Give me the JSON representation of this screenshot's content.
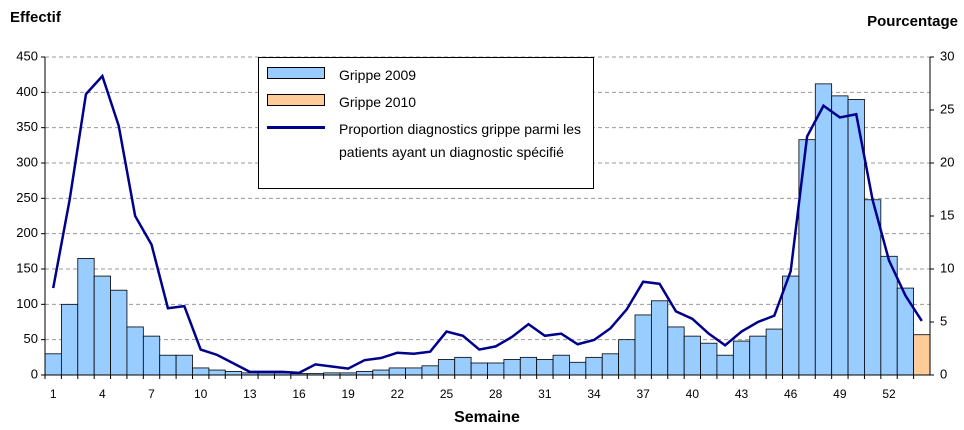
{
  "chart_data": {
    "type": "bar",
    "y_title": "Effectif",
    "y2_title": "Pourcentage",
    "x_title": "Semaine",
    "categories": [
      "1",
      null,
      null,
      "4",
      null,
      null,
      "7",
      null,
      null,
      "10",
      null,
      null,
      "13",
      null,
      null,
      "16",
      null,
      null,
      "19",
      null,
      null,
      "22",
      null,
      null,
      "25",
      null,
      null,
      "28",
      null,
      null,
      "31",
      null,
      null,
      "34",
      null,
      null,
      "37",
      null,
      null,
      "40",
      null,
      null,
      "43",
      null,
      null,
      "46",
      null,
      null,
      "49",
      null,
      null,
      "52",
      null,
      null
    ],
    "series": [
      {
        "name": "Grippe 2009",
        "type": "bar",
        "color": "#99ccff",
        "values": [
          30,
          100,
          165,
          140,
          120,
          68,
          55,
          28,
          28,
          10,
          7,
          5,
          3,
          3,
          3,
          2,
          2,
          3,
          3,
          5,
          7,
          10,
          10,
          13,
          22,
          25,
          17,
          17,
          22,
          25,
          22,
          28,
          18,
          25,
          30,
          50,
          85,
          105,
          68,
          55,
          45,
          28,
          48,
          55,
          65,
          140,
          333,
          412,
          395,
          390,
          248,
          168,
          123,
          null
        ]
      },
      {
        "name": "Grippe 2010",
        "type": "bar",
        "color": "#ffcc99",
        "values": [
          null,
          null,
          null,
          null,
          null,
          null,
          null,
          null,
          null,
          null,
          null,
          null,
          null,
          null,
          null,
          null,
          null,
          null,
          null,
          null,
          null,
          null,
          null,
          null,
          null,
          null,
          null,
          null,
          null,
          null,
          null,
          null,
          null,
          null,
          null,
          null,
          null,
          null,
          null,
          null,
          null,
          null,
          null,
          null,
          null,
          null,
          null,
          null,
          null,
          null,
          null,
          null,
          null,
          57
        ]
      },
      {
        "name": "Proportion diagnostics grippe parmi les patients ayant un diagnostic spécifié",
        "type": "line",
        "axis": "y2",
        "color": "#00008b",
        "values": [
          8.2,
          16.5,
          26.5,
          28.2,
          23.5,
          15,
          12.3,
          6.3,
          6.5,
          2.4,
          1.9,
          1.1,
          0.3,
          0.3,
          0.3,
          0.2,
          1.0,
          0.8,
          0.6,
          1.4,
          1.6,
          2.1,
          2.0,
          2.2,
          4.1,
          3.7,
          2.4,
          2.7,
          3.6,
          4.8,
          3.7,
          3.9,
          2.9,
          3.3,
          4.4,
          6.2,
          8.8,
          8.6,
          6.0,
          5.3,
          3.9,
          2.8,
          4.1,
          5.0,
          5.6,
          9.8,
          22.5,
          25.4,
          24.3,
          24.6,
          16.5,
          10.8,
          7.5,
          5.1
        ]
      }
    ],
    "ylim": [
      0,
      450
    ],
    "yticks": [
      0,
      50,
      100,
      150,
      200,
      250,
      300,
      350,
      400,
      450
    ],
    "y2lim": [
      0,
      30
    ],
    "y2ticks": [
      0,
      5,
      10,
      15,
      20,
      25,
      30
    ],
    "grid": true,
    "legend": "top"
  }
}
